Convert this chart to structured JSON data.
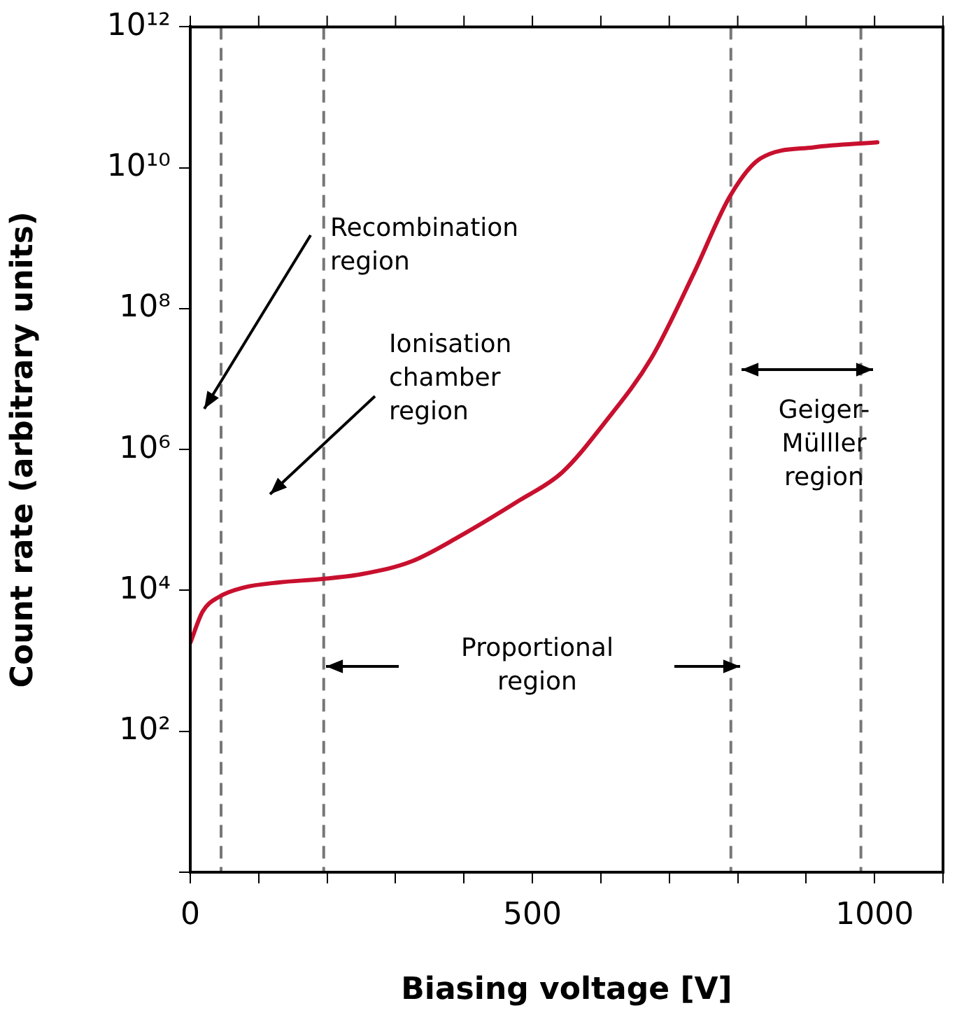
{
  "chart_data": {
    "type": "line",
    "xlabel": "Biasing voltage [V]",
    "ylabel": "Count rate (arbitrary units)",
    "x": [
      0,
      18,
      42,
      78,
      130,
      191,
      250,
      324,
      394,
      481,
      543,
      604,
      674,
      736,
      789,
      833,
      911,
      1004
    ],
    "series": [
      {
        "color": "#c8102e",
        "values": [
          1800,
          5000,
          8100,
          11000,
          13000,
          14500,
          17000,
          26000,
          59000,
          190000,
          470000,
          2300000,
          20000000,
          320000000,
          4000000000,
          13500000000,
          19500000000,
          23000000000
        ]
      }
    ],
    "log": "y",
    "xlim": [
      0,
      1100
    ],
    "ylim": [
      1,
      1000000000000
    ],
    "xticks": [
      0,
      {
        "value": 100,
        "label": null
      },
      {
        "value": 200,
        "label": null
      },
      {
        "value": 300,
        "label": null
      },
      {
        "value": 400,
        "label": null
      },
      500,
      {
        "value": 600,
        "label": null
      },
      {
        "value": 700,
        "label": null
      },
      {
        "value": 800,
        "label": null
      },
      {
        "value": 900,
        "label": null
      },
      1000,
      {
        "value": 1100,
        "label": null
      }
    ],
    "yticks": [
      {
        "value": 1,
        "label": null
      },
      {
        "value": 100,
        "label": "10²"
      },
      {
        "value": 10000,
        "label": "10⁴"
      },
      {
        "value": 1000000,
        "label": "10⁶"
      },
      {
        "value": 100000000,
        "label": "10⁸"
      },
      {
        "value": 10000000000,
        "label": "10¹⁰"
      },
      {
        "value": 1000000000000,
        "label": "10¹²"
      }
    ],
    "ref_lines": [
      {
        "axis": "x",
        "value": 45,
        "color": "#777777",
        "line_style": "dashed"
      },
      {
        "axis": "x",
        "value": 195,
        "color": "#777777",
        "line_style": "dashed"
      },
      {
        "axis": "x",
        "value": 790,
        "color": "#777777",
        "line_style": "dashed"
      },
      {
        "axis": "x",
        "value": 980,
        "color": "#777777",
        "line_style": "dashed"
      }
    ],
    "annotations": [
      "Recombination\nregion",
      "Ionisation\nchamber\nregion",
      "Proportional\nregion",
      "Geiger-\nMülller\nregion"
    ],
    "grid": false,
    "legend": false,
    "marker": "none",
    "line_style": "solid"
  }
}
